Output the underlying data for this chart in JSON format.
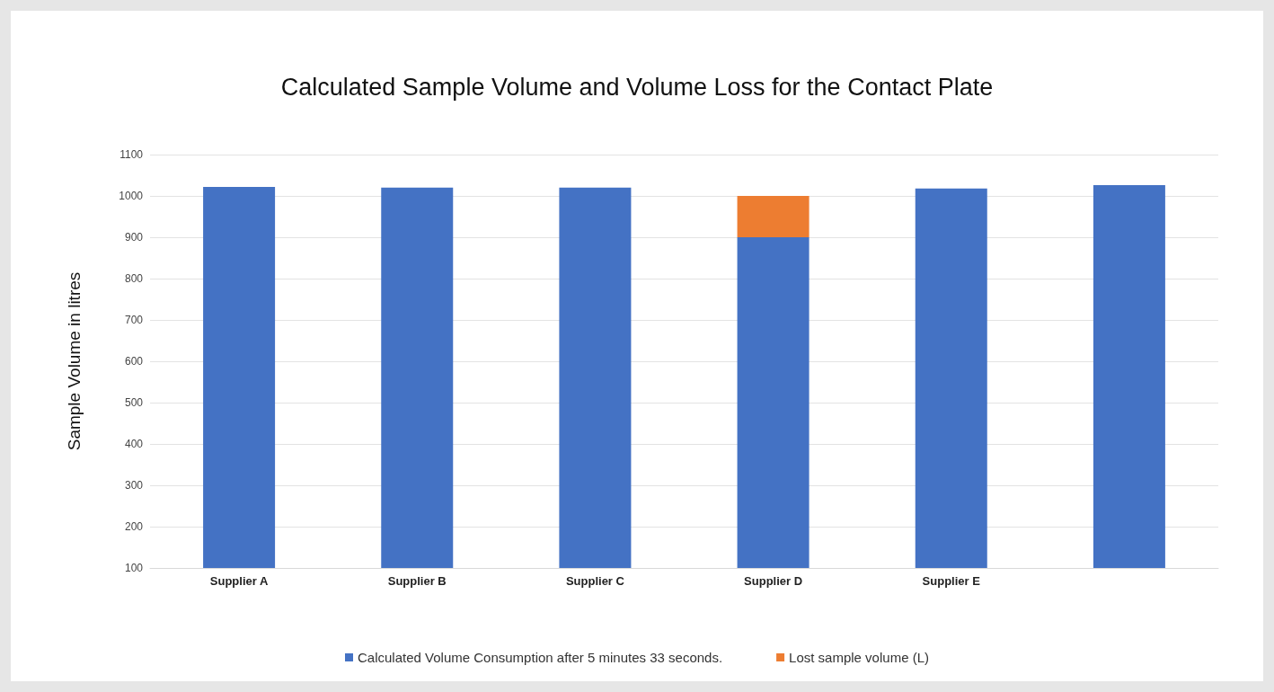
{
  "chart_data": {
    "type": "bar",
    "title": "Calculated Sample Volume and Volume Loss for the Contact Plate",
    "ylabel": "Sample Volume in litres",
    "categories": [
      "Supplier A",
      "Supplier B",
      "Supplier C",
      "Supplier D",
      "Supplier E",
      null
    ],
    "stacked": true,
    "series": [
      {
        "name": "Calculated Volume Consumption after 5 minutes 33 seconds.",
        "color": "#4472c4",
        "values": [
          1022,
          1020,
          1020,
          900,
          1018,
          1026
        ]
      },
      {
        "name": "Lost sample volume (L)",
        "color": "#ed7d31",
        "values": [
          null,
          null,
          null,
          100,
          null,
          null
        ]
      }
    ],
    "ylim": [
      100,
      1100
    ],
    "yticks": [
      100,
      200,
      300,
      400,
      500,
      600,
      700,
      800,
      900,
      1000,
      1100
    ],
    "grid": "y",
    "legend": "bottom"
  }
}
